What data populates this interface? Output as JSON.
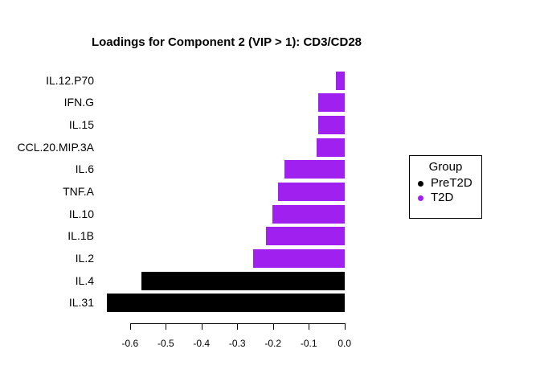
{
  "chart_data": {
    "type": "bar",
    "orientation": "horizontal",
    "title": "Loadings for Component 2 (VIP > 1): CD3/CD28",
    "xlabel": "",
    "ylabel": "",
    "grid": false,
    "categories": [
      "IL.12.P70",
      "IFN.G",
      "IL.15",
      "CCL.20.MIP.3A",
      "IL.6",
      "TNF.A",
      "IL.10",
      "IL.1B",
      "IL.2",
      "IL.4",
      "IL.31"
    ],
    "values": [
      -0.025,
      -0.074,
      -0.074,
      -0.078,
      -0.168,
      -0.186,
      -0.201,
      -0.219,
      -0.255,
      -0.567,
      -0.664
    ],
    "groups": [
      "T2D",
      "T2D",
      "T2D",
      "T2D",
      "T2D",
      "T2D",
      "T2D",
      "T2D",
      "T2D",
      "PreT2D",
      "PreT2D"
    ],
    "group_colors": {
      "PreT2D": "#000000",
      "T2D": "#A020F0"
    },
    "xlim": [
      -0.68,
      0.0
    ],
    "x_ticks": [
      -0.6,
      -0.5,
      -0.4,
      -0.3,
      -0.2,
      -0.1,
      0.0
    ],
    "x_tick_labels": [
      "-0.6",
      "-0.5",
      "-0.4",
      "-0.3",
      "-0.2",
      "-0.1",
      "0.0"
    ],
    "legend": {
      "title": "Group",
      "position": "right",
      "entries": [
        {
          "label": "PreT2D",
          "color": "#000000"
        },
        {
          "label": "T2D",
          "color": "#A020F0"
        }
      ]
    }
  }
}
